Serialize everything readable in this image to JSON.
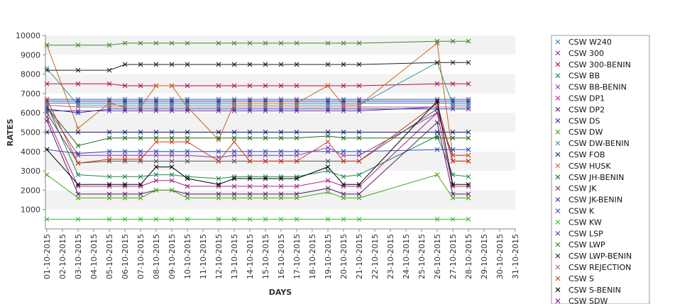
{
  "chart_data": {
    "type": "line",
    "title": "",
    "xlabel": "DAYS",
    "ylabel": "RATES",
    "ylim": [
      0,
      10000
    ],
    "yticks": [
      1000,
      2000,
      3000,
      4000,
      5000,
      6000,
      7000,
      8000,
      9000,
      10000
    ],
    "x": [
      "01-10-2015",
      "02-10-2015",
      "03-10-2015",
      "04-10-2015",
      "05-10-2015",
      "06-10-2015",
      "07-10-2015",
      "08-10-2015",
      "09-10-2015",
      "10-10-2015",
      "11-10-2015",
      "12-10-2015",
      "13-10-2015",
      "14-10-2015",
      "15-10-2015",
      "16-10-2015",
      "17-10-2015",
      "18-10-2015",
      "19-10-2015",
      "20-10-2015",
      "21-10-2015",
      "22-10-2015",
      "23-10-2015",
      "24-10-2015",
      "25-10-2015",
      "26-10-2015",
      "27-10-2015",
      "28-10-2015",
      "29-10-2015",
      "30-10-2015",
      "31-10-2015"
    ],
    "grid": "horizontal bands",
    "legend_position": "right",
    "series": [
      {
        "name": "CSW  W240",
        "color": "#2a7ab8",
        "values": [
          6500,
          null,
          6500,
          null,
          6500,
          6500,
          6500,
          6500,
          6500,
          6500,
          null,
          6500,
          6500,
          6500,
          6500,
          6500,
          6500,
          null,
          6500,
          6500,
          6500,
          null,
          null,
          null,
          null,
          6500,
          6500,
          6500,
          null,
          null,
          null
        ]
      },
      {
        "name": "CSW 300",
        "color": "#7a2a9e",
        "values": [
          6100,
          null,
          6100,
          null,
          6100,
          6100,
          6100,
          6100,
          6100,
          6100,
          null,
          6100,
          6100,
          6100,
          6100,
          6100,
          6100,
          null,
          6100,
          6100,
          6100,
          null,
          null,
          null,
          null,
          6300,
          6300,
          6300,
          null,
          null,
          null
        ]
      },
      {
        "name": "CSW 300-BENIN",
        "color": "#b0104e",
        "values": [
          7500,
          null,
          7500,
          null,
          7500,
          7400,
          7400,
          7400,
          7400,
          7400,
          null,
          7400,
          7400,
          7400,
          7400,
          7400,
          7400,
          null,
          7400,
          7400,
          7400,
          null,
          null,
          null,
          null,
          7500,
          7500,
          7500,
          null,
          null,
          null
        ]
      },
      {
        "name": "CSW BB",
        "color": "#1e8a4a",
        "values": [
          6400,
          null,
          2800,
          null,
          2700,
          2700,
          2700,
          2800,
          2800,
          2700,
          null,
          2600,
          2700,
          2700,
          2700,
          2700,
          2700,
          null,
          3000,
          2700,
          2800,
          null,
          null,
          null,
          null,
          4800,
          2800,
          2700,
          null,
          null,
          null
        ]
      },
      {
        "name": "CSW BB-BENIN",
        "color": "#8a3aa8",
        "values": [
          6300,
          null,
          3800,
          null,
          3800,
          3800,
          3800,
          3800,
          3800,
          3800,
          null,
          3700,
          3800,
          3800,
          3800,
          3800,
          3800,
          null,
          4200,
          3800,
          3800,
          null,
          null,
          null,
          null,
          6000,
          3800,
          3800,
          null,
          null,
          null
        ]
      },
      {
        "name": "CSW DP1",
        "color": "#b0208a",
        "values": [
          5800,
          null,
          2200,
          null,
          2200,
          2200,
          2200,
          2500,
          2500,
          2200,
          null,
          2200,
          2200,
          2200,
          2200,
          2200,
          2200,
          null,
          2500,
          2200,
          2200,
          null,
          null,
          null,
          null,
          6000,
          2200,
          2200,
          null,
          null,
          null
        ]
      },
      {
        "name": "CSW DP2",
        "color": "#5a1a6e",
        "values": [
          5600,
          null,
          1800,
          null,
          1800,
          1800,
          1800,
          2000,
          2000,
          1800,
          null,
          1800,
          1800,
          1800,
          1800,
          1800,
          1800,
          null,
          2100,
          1800,
          1800,
          null,
          null,
          null,
          null,
          5500,
          1800,
          1800,
          null,
          null,
          null
        ]
      },
      {
        "name": "CSW DS",
        "color": "#3a2aa8",
        "values": [
          6600,
          null,
          6600,
          null,
          6600,
          6600,
          6600,
          6600,
          6600,
          6600,
          null,
          6600,
          6600,
          6600,
          6600,
          6600,
          6600,
          null,
          6600,
          6600,
          6600,
          null,
          null,
          null,
          null,
          6600,
          6600,
          6600,
          null,
          null,
          null
        ]
      },
      {
        "name": "CSW DW",
        "color": "#4aa81e",
        "values": [
          2800,
          null,
          1600,
          null,
          1600,
          1600,
          1600,
          2000,
          2000,
          1600,
          null,
          1600,
          1600,
          1600,
          1600,
          1600,
          1600,
          null,
          1900,
          1600,
          1600,
          null,
          null,
          null,
          null,
          2800,
          1600,
          1600,
          null,
          null,
          null
        ]
      },
      {
        "name": "CSW DW-BENIN",
        "color": "#2a9a9a",
        "values": [
          8300,
          null,
          6400,
          null,
          6400,
          6400,
          6400,
          6400,
          6400,
          6400,
          null,
          6400,
          6400,
          6400,
          6400,
          6400,
          6400,
          null,
          6400,
          6400,
          6400,
          null,
          null,
          null,
          null,
          8600,
          6400,
          6400,
          null,
          null,
          null
        ]
      },
      {
        "name": "CSW FOB",
        "color": "#1a1a7a",
        "values": [
          5000,
          null,
          5000,
          null,
          5000,
          5000,
          5000,
          5000,
          5000,
          5000,
          null,
          5000,
          5000,
          5000,
          5000,
          5000,
          5000,
          null,
          5000,
          5000,
          5000,
          null,
          null,
          null,
          null,
          5000,
          5000,
          5000,
          null,
          null,
          null
        ]
      },
      {
        "name": "CSW HUSK",
        "color": "#c8641a",
        "values": [
          9500,
          null,
          5200,
          null,
          6500,
          6300,
          6300,
          7400,
          7400,
          6300,
          null,
          4600,
          6500,
          6500,
          6500,
          6500,
          6500,
          null,
          7400,
          6400,
          6400,
          null,
          null,
          null,
          null,
          9600,
          3800,
          3800,
          null,
          null,
          null
        ]
      },
      {
        "name": "CSW JH-BENIN",
        "color": "#1a6a1a",
        "values": [
          6300,
          null,
          4300,
          null,
          4700,
          4700,
          4700,
          4700,
          4700,
          4700,
          null,
          4700,
          4700,
          4700,
          4700,
          4700,
          4700,
          null,
          4800,
          4700,
          4700,
          null,
          null,
          null,
          null,
          4700,
          4700,
          4700,
          null,
          null,
          null
        ]
      },
      {
        "name": "CSW JK",
        "color": "#555555",
        "values": [
          6000,
          null,
          3400,
          null,
          3500,
          3500,
          3500,
          3500,
          3500,
          3500,
          null,
          3500,
          3500,
          3500,
          3500,
          3500,
          3500,
          null,
          3500,
          3500,
          3500,
          null,
          null,
          null,
          null,
          6200,
          3500,
          3500,
          null,
          null,
          null
        ]
      },
      {
        "name": "CSW JK-BENIN",
        "color": "#1a3aa8",
        "values": [
          6200,
          null,
          6000,
          null,
          6200,
          6200,
          6200,
          6200,
          6200,
          6200,
          null,
          6200,
          6200,
          6200,
          6200,
          6200,
          6200,
          null,
          6200,
          6200,
          6200,
          null,
          null,
          null,
          null,
          6200,
          6200,
          6200,
          null,
          null,
          null
        ]
      },
      {
        "name": "CSW K",
        "color": "#2a4ab0",
        "values": [
          4100,
          null,
          3900,
          null,
          4000,
          4000,
          4000,
          4000,
          4000,
          4000,
          null,
          4000,
          4000,
          4000,
          4000,
          4000,
          4000,
          null,
          4000,
          4000,
          4000,
          null,
          null,
          null,
          null,
          4100,
          4100,
          4100,
          null,
          null,
          null
        ]
      },
      {
        "name": "CSW KW",
        "color": "#3ab83a",
        "values": [
          500,
          null,
          500,
          null,
          500,
          500,
          500,
          500,
          500,
          500,
          null,
          500,
          500,
          500,
          500,
          500,
          500,
          null,
          500,
          500,
          500,
          null,
          null,
          null,
          null,
          500,
          500,
          500,
          null,
          null,
          null
        ]
      },
      {
        "name": "CSW LSP",
        "color": "#3a5a9a",
        "values": [
          6700,
          null,
          6700,
          null,
          6700,
          6700,
          6700,
          6700,
          6700,
          6700,
          null,
          6700,
          6700,
          6700,
          6700,
          6700,
          6700,
          null,
          6700,
          6700,
          6700,
          null,
          null,
          null,
          null,
          6700,
          6700,
          6700,
          null,
          null,
          null
        ]
      },
      {
        "name": "CSW LWP",
        "color": "#3a8a2a",
        "values": [
          9500,
          null,
          9500,
          null,
          9500,
          9600,
          9600,
          9600,
          9600,
          9600,
          null,
          9600,
          9600,
          9600,
          9600,
          9600,
          9600,
          null,
          9600,
          9600,
          9600,
          null,
          null,
          null,
          null,
          9700,
          9700,
          9700,
          null,
          null,
          null
        ]
      },
      {
        "name": "CSW LWP-BENIN",
        "color": "#222222",
        "values": [
          8200,
          null,
          8200,
          null,
          8200,
          8500,
          8500,
          8500,
          8500,
          8500,
          null,
          8500,
          8500,
          8500,
          8500,
          8500,
          8500,
          null,
          8500,
          8500,
          8500,
          null,
          null,
          null,
          null,
          8600,
          8600,
          8600,
          null,
          null,
          null
        ]
      },
      {
        "name": "CSW REJECTION",
        "color": "#b05a8a",
        "values": [
          6400,
          null,
          6300,
          null,
          6300,
          6300,
          6300,
          6300,
          6300,
          6300,
          null,
          6300,
          6300,
          6300,
          6300,
          6300,
          6300,
          null,
          6300,
          6300,
          6300,
          null,
          null,
          null,
          null,
          6300,
          6300,
          6300,
          null,
          null,
          null
        ]
      },
      {
        "name": "CSW S",
        "color": "#c83a1a",
        "values": [
          6700,
          null,
          3400,
          null,
          3600,
          3600,
          3600,
          4500,
          4500,
          4500,
          null,
          3500,
          4500,
          3500,
          3500,
          3500,
          3500,
          null,
          4500,
          3500,
          3500,
          null,
          null,
          null,
          null,
          6500,
          3500,
          3500,
          null,
          null,
          null
        ]
      },
      {
        "name": "CSW S-BENIN",
        "color": "#000000",
        "values": [
          4100,
          null,
          2300,
          null,
          2300,
          2300,
          2300,
          3200,
          3200,
          2600,
          null,
          2300,
          2600,
          2600,
          2600,
          2600,
          2600,
          null,
          3200,
          2300,
          2300,
          null,
          null,
          null,
          null,
          6600,
          2300,
          2300,
          null,
          null,
          null
        ]
      },
      {
        "name": "CSW SDW",
        "color": "#6a1a8a",
        "values": null
      }
    ]
  }
}
